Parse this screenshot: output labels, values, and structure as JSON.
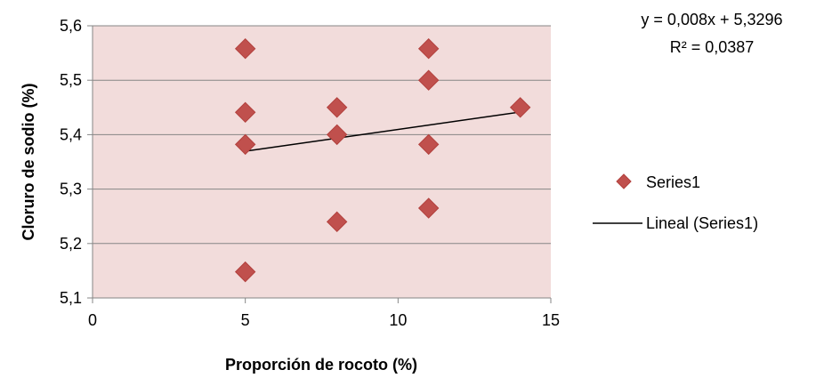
{
  "chart_data": {
    "type": "scatter",
    "xlabel": "Proporción de rocoto (%)",
    "ylabel": "Cloruro de sodio (%)",
    "xlim": [
      0,
      15
    ],
    "ylim": [
      5.1,
      5.6
    ],
    "x_ticks": [
      0,
      5,
      10,
      15
    ],
    "x_tick_labels": [
      "0",
      "5",
      "10",
      "15"
    ],
    "y_ticks": [
      5.1,
      5.2,
      5.3,
      5.4,
      5.5,
      5.6
    ],
    "y_tick_labels": [
      "5,1",
      "5,2",
      "5,3",
      "5,4",
      "5,5",
      "5,6"
    ],
    "grid": "horizontal",
    "plot_background": "#f2dcdb",
    "series": [
      {
        "name": "Series1",
        "marker": "diamond",
        "color": "#c0504d",
        "points": [
          {
            "x": 5,
            "y": 5.558
          },
          {
            "x": 5,
            "y": 5.441
          },
          {
            "x": 5,
            "y": 5.382
          },
          {
            "x": 5,
            "y": 5.148
          },
          {
            "x": 8,
            "y": 5.45
          },
          {
            "x": 8,
            "y": 5.4
          },
          {
            "x": 8,
            "y": 5.24
          },
          {
            "x": 11,
            "y": 5.558
          },
          {
            "x": 11,
            "y": 5.5
          },
          {
            "x": 11,
            "y": 5.382
          },
          {
            "x": 11,
            "y": 5.265
          },
          {
            "x": 14,
            "y": 5.45
          }
        ]
      }
    ],
    "trendline": {
      "name": "Lineal (Series1)",
      "slope": 0.008,
      "intercept": 5.3296,
      "x_range": [
        5,
        14
      ],
      "color": "#000000"
    },
    "equation_text": "y = 0,008x + 5,3296",
    "r2_text": "R² = 0,0387",
    "legend": {
      "position": "right",
      "entries": [
        "Series1",
        "Lineal (Series1)"
      ]
    }
  }
}
